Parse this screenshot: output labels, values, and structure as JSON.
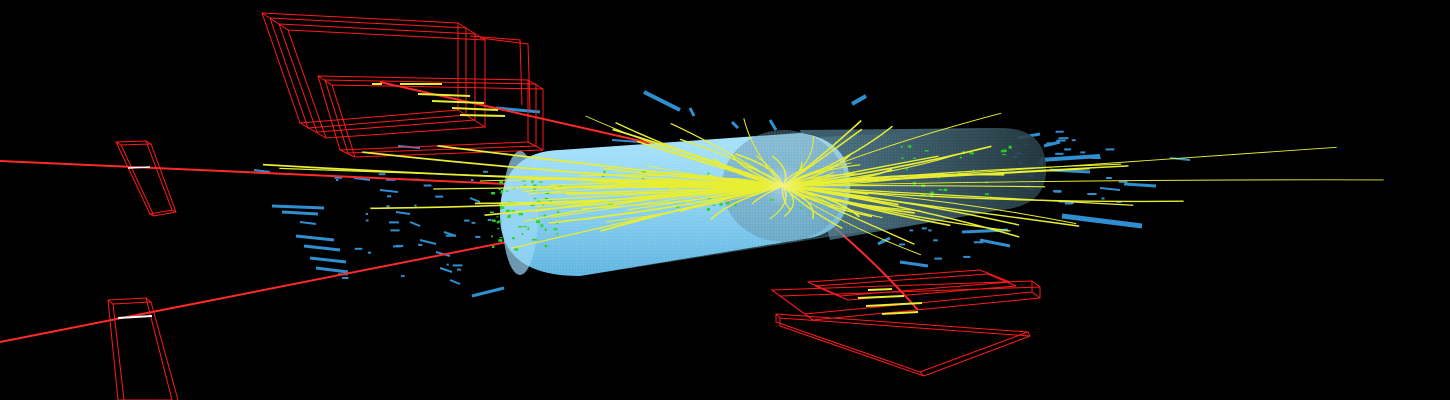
{
  "scene": {
    "background": "#000000",
    "colors": {
      "barrel_fill": "#8fd8f8",
      "barrel_shadow": "#4a9cc8",
      "muon_track": "#ff2a2a",
      "muon_chamber": "#ff1a1a",
      "inner_track": "#e8ee34",
      "calorimeter_hit": "#2f8fd0",
      "energy_deposit": "#27d627"
    }
  }
}
